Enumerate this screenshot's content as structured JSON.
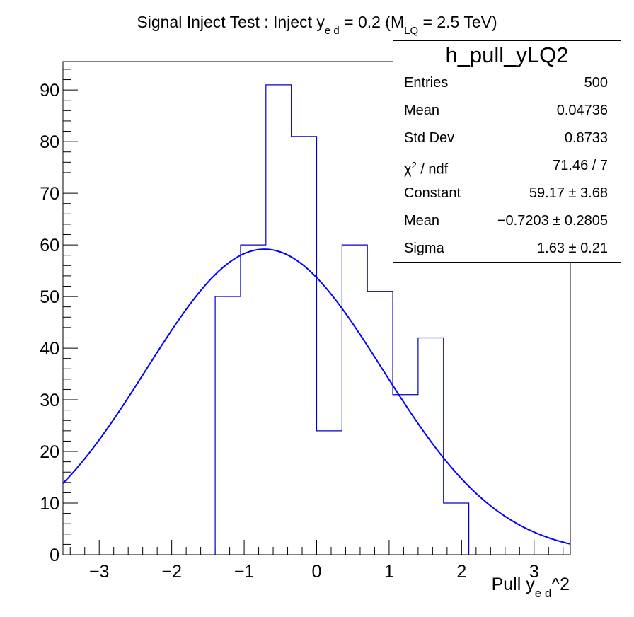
{
  "chart_data": {
    "type": "histogram",
    "title_parts": {
      "pre": "Signal Inject Test : Inject y",
      "sub1": "e d",
      "mid": " = 0.2 (M",
      "sub2": "LQ",
      "post": " = 2.5 TeV)"
    },
    "xlabel_parts": {
      "pre": "Pull y",
      "sub": "e d",
      "post": "^2"
    },
    "xlim": [
      -3.5,
      3.5
    ],
    "ylim": [
      0,
      95.5
    ],
    "x_ticks": [
      -3,
      -2,
      -1,
      0,
      1,
      2,
      3
    ],
    "x_tick_labels": [
      "−3",
      "−2",
      "−1",
      "0",
      "1",
      "2",
      "3"
    ],
    "y_ticks": [
      0,
      10,
      20,
      30,
      40,
      50,
      60,
      70,
      80,
      90
    ],
    "y_tick_labels": [
      "0",
      "10",
      "20",
      "30",
      "40",
      "50",
      "60",
      "70",
      "80",
      "90"
    ],
    "bins": [
      {
        "x_low": -1.4,
        "x_high": -1.05,
        "value": 50
      },
      {
        "x_low": -1.05,
        "x_high": -0.7,
        "value": 60
      },
      {
        "x_low": -0.7,
        "x_high": -0.35,
        "value": 91
      },
      {
        "x_low": -0.35,
        "x_high": 0.0,
        "value": 81
      },
      {
        "x_low": 0.0,
        "x_high": 0.35,
        "value": 24
      },
      {
        "x_low": 0.35,
        "x_high": 0.7,
        "value": 60
      },
      {
        "x_low": 0.7,
        "x_high": 1.05,
        "value": 51
      },
      {
        "x_low": 1.05,
        "x_high": 1.4,
        "value": 31
      },
      {
        "x_low": 1.4,
        "x_high": 1.75,
        "value": 42
      },
      {
        "x_low": 1.75,
        "x_high": 2.1,
        "value": 10
      }
    ],
    "fit": {
      "function": "gaus",
      "constant": 59.17,
      "mean": -0.7203,
      "sigma": 1.63
    },
    "colors": {
      "histogram": "#0000cc",
      "fit": "#0000ff",
      "axis": "#000000"
    },
    "stats_box": {
      "name": "h_pull_yLQ2",
      "rows": [
        {
          "label": "Entries",
          "value": "500"
        },
        {
          "label": "Mean",
          "value": "0.04736"
        },
        {
          "label": "Std Dev",
          "value": "0.8733"
        },
        {
          "label": "χ",
          "label_sup": "2",
          "label_post": " / ndf",
          "value": "71.46 / 7"
        },
        {
          "label": "Constant",
          "value": "59.17 ± 3.68"
        },
        {
          "label": "Mean",
          "value": "−0.7203 ± 0.2805"
        },
        {
          "label": "Sigma",
          "value": "1.63 ± 0.21"
        }
      ]
    }
  }
}
